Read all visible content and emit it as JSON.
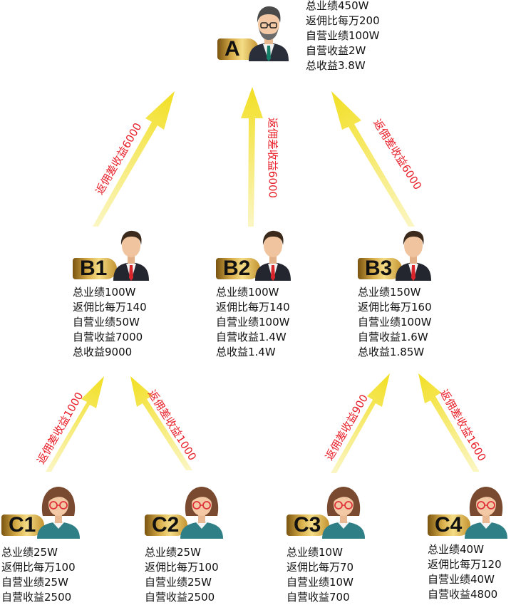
{
  "colors": {
    "arrow_light": "#f7f1a8",
    "arrow_dark": "#f2e12a",
    "label_red": "#e8202a"
  },
  "nodes": {
    "A": {
      "label": "A",
      "avatar": "bearded-man-avatar",
      "stats": [
        "总业绩450W",
        "返佣比每万200",
        "自营业绩100W",
        "自营收益2W",
        "总收益3.8W"
      ]
    },
    "B1": {
      "label": "B1",
      "avatar": "man-suit-avatar",
      "stats": [
        "总业绩100W",
        "返佣比每万140",
        "自营业绩50W",
        "自营收益7000",
        "总收益9000"
      ]
    },
    "B2": {
      "label": "B2",
      "avatar": "man-suit-avatar",
      "stats": [
        "总业绩100W",
        "返佣比每万140",
        "自营业绩100W",
        "自营收益1.4W",
        "总收益1.4W"
      ]
    },
    "B3": {
      "label": "B3",
      "avatar": "man-suit-avatar",
      "stats": [
        "总业绩150W",
        "返佣比每万160",
        "自营业绩100W",
        "自营收益1.6W",
        "总收益1.85W"
      ]
    },
    "C1": {
      "label": "C1",
      "avatar": "woman-glasses-avatar",
      "stats": [
        "总业绩25W",
        "返佣比每万100",
        "自营业绩25W",
        "自营收益2500"
      ]
    },
    "C2": {
      "label": "C2",
      "avatar": "woman-glasses-avatar",
      "stats": [
        "总业绩25W",
        "返佣比每万100",
        "自营业绩25W",
        "自营收益2500"
      ]
    },
    "C3": {
      "label": "C3",
      "avatar": "woman-glasses-avatar",
      "stats": [
        "总业绩10W",
        "返佣比每万70",
        "自营业绩10W",
        "自营收益700"
      ]
    },
    "C4": {
      "label": "C4",
      "avatar": "woman-glasses-avatar",
      "stats": [
        "总业绩40W",
        "返佣比每万120",
        "自营业绩40W",
        "自营收益4800"
      ]
    }
  },
  "arrows": [
    {
      "from": "B1",
      "to": "A",
      "label": "返佣差收益6000"
    },
    {
      "from": "B2",
      "to": "A",
      "label": "返佣差收益6000"
    },
    {
      "from": "B3",
      "to": "A",
      "label": "返佣差收益6000"
    },
    {
      "from": "C1",
      "to": "B1",
      "label": "返佣差收益1000"
    },
    {
      "from": "C2",
      "to": "B1",
      "label": "返佣差收益1000"
    },
    {
      "from": "C3",
      "to": "B3",
      "label": "返佣差收益900"
    },
    {
      "from": "C4",
      "to": "B3",
      "label": "返佣差收益1600"
    }
  ]
}
